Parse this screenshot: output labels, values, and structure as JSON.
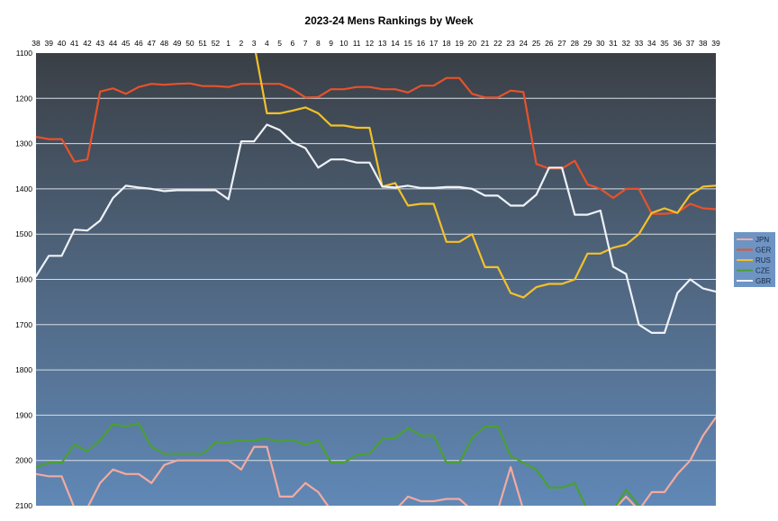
{
  "chart_data": {
    "type": "line",
    "title": "2023-24 Mens Rankings by Week",
    "xlabel": "",
    "ylabel": "",
    "x": [
      "38",
      "39",
      "40",
      "41",
      "42",
      "43",
      "44",
      "45",
      "46",
      "47",
      "48",
      "49",
      "50",
      "51",
      "52",
      "1",
      "2",
      "3",
      "4",
      "5",
      "6",
      "7",
      "8",
      "9",
      "10",
      "11",
      "12",
      "13",
      "14",
      "15",
      "16",
      "17",
      "18",
      "19",
      "20",
      "21",
      "22",
      "23",
      "24",
      "25",
      "26",
      "27",
      "28",
      "29",
      "30",
      "31",
      "32",
      "33",
      "34",
      "35",
      "36",
      "37",
      "38",
      "39"
    ],
    "xaxis_position": "top",
    "ylim": [
      1100,
      2100
    ],
    "y_reversed": true,
    "yticks": [
      1100,
      1200,
      1300,
      1400,
      1500,
      1600,
      1700,
      1800,
      1900,
      2000,
      2100
    ],
    "grid": true,
    "legend_position": "right",
    "series": [
      {
        "name": "JPN",
        "color": "#f2aaa0",
        "values": [
          2030,
          2035,
          2035,
          2105,
          2105,
          2050,
          2020,
          2030,
          2030,
          2050,
          2010,
          2000,
          2000,
          2000,
          2000,
          2000,
          2020,
          1970,
          1970,
          2080,
          2080,
          2050,
          2070,
          2110,
          2110,
          2110,
          2110,
          2110,
          2110,
          2080,
          2090,
          2090,
          2085,
          2085,
          2110,
          2110,
          2110,
          2015,
          2110,
          2110,
          2110,
          2110,
          2110,
          2110,
          2110,
          2110,
          2080,
          2110,
          2070,
          2070,
          2030,
          2000,
          1945,
          1905
        ]
      },
      {
        "name": "GER",
        "color": "#e8522a",
        "values": [
          1285,
          1290,
          1290,
          1340,
          1335,
          1185,
          1178,
          1190,
          1175,
          1168,
          1170,
          1168,
          1167,
          1173,
          1173,
          1175,
          1168,
          1168,
          1168,
          1168,
          1180,
          1198,
          1197,
          1180,
          1180,
          1175,
          1175,
          1180,
          1180,
          1187,
          1172,
          1172,
          1155,
          1155,
          1190,
          1198,
          1198,
          1183,
          1186,
          1345,
          1355,
          1355,
          1338,
          1390,
          1400,
          1420,
          1400,
          1400,
          1455,
          1455,
          1452,
          1433,
          1443,
          1445
        ]
      },
      {
        "name": "RUS",
        "color": "#f2c12a",
        "values": [
          null,
          null,
          null,
          null,
          null,
          null,
          null,
          null,
          null,
          null,
          null,
          null,
          null,
          null,
          null,
          null,
          null,
          1080,
          1233,
          1233,
          1227,
          1220,
          1233,
          1260,
          1260,
          1265,
          1265,
          1395,
          1387,
          1437,
          1433,
          1433,
          1517,
          1517,
          1500,
          1573,
          1573,
          1630,
          1640,
          1617,
          1610,
          1610,
          1600,
          1543,
          1543,
          1530,
          1523,
          1500,
          1453,
          1443,
          1453,
          1413,
          1395,
          1393
        ]
      },
      {
        "name": "CZE",
        "color": "#4aa032",
        "values": [
          2015,
          2005,
          2005,
          1965,
          1980,
          1955,
          1920,
          1925,
          1918,
          1970,
          1985,
          1985,
          1985,
          1985,
          1960,
          1960,
          1955,
          1955,
          1952,
          1958,
          1955,
          1965,
          1955,
          2005,
          2005,
          1988,
          1985,
          1953,
          1950,
          1928,
          1945,
          1945,
          2005,
          2005,
          1950,
          1925,
          1925,
          1990,
          2005,
          2020,
          2060,
          2060,
          2050,
          2110,
          2110,
          2110,
          2065,
          2100,
          2110,
          2110,
          2110,
          2110,
          2110,
          2110
        ]
      },
      {
        "name": "GBR",
        "color": "#eef2f8",
        "values": [
          1593,
          1548,
          1548,
          1490,
          1492,
          1470,
          1420,
          1393,
          1397,
          1400,
          1405,
          1403,
          1403,
          1403,
          1403,
          1423,
          1295,
          1295,
          1258,
          1270,
          1297,
          1310,
          1353,
          1335,
          1335,
          1342,
          1342,
          1395,
          1397,
          1393,
          1398,
          1398,
          1396,
          1396,
          1400,
          1415,
          1415,
          1437,
          1437,
          1413,
          1353,
          1353,
          1457,
          1457,
          1448,
          1572,
          1588,
          1700,
          1718,
          1718,
          1630,
          1600,
          1620,
          1627
        ]
      }
    ]
  }
}
